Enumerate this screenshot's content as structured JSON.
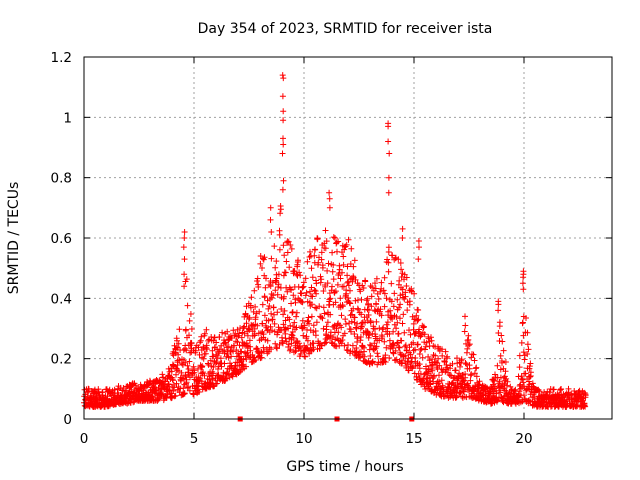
{
  "chart_data": {
    "type": "scatter",
    "title": "Day 354 of 2023, SRMTID for receiver ista",
    "xlabel": "GPS time / hours",
    "ylabel": "SRMTID / TECUs",
    "xlim": [
      0,
      24
    ],
    "ylim": [
      0,
      1.2
    ],
    "x_ticks": [
      "0",
      "5",
      "10",
      "15",
      "20"
    ],
    "y_ticks": [
      "0",
      "0.2",
      "0.4",
      "0.6",
      "0.8",
      "1",
      "1.2"
    ],
    "x_tick_values": [
      0,
      5,
      10,
      15,
      20
    ],
    "y_tick_values": [
      0,
      0.2,
      0.4,
      0.6,
      0.8,
      1.0,
      1.2
    ],
    "grid": true,
    "marker": "+",
    "color": "#ff0000",
    "zero_markers_x": [
      7.1,
      11.5,
      14.9
    ],
    "series": [
      {
        "name": "SRMTID",
        "envelope": {
          "x": [
            0,
            0.5,
            1,
            1.5,
            2,
            2.5,
            3,
            3.5,
            4,
            4.5,
            4.7,
            5,
            5.5,
            6,
            6.5,
            7,
            7.5,
            8,
            8.5,
            9,
            9.5,
            10,
            10.5,
            11,
            11.5,
            12,
            12.5,
            13,
            13.5,
            14,
            14.5,
            15,
            15.5,
            16,
            16.5,
            17,
            17.5,
            18,
            18.5,
            18.9,
            19.3,
            19.7,
            20,
            20.4,
            20.8,
            21.2,
            21.6,
            22,
            22.4,
            22.8
          ],
          "low": [
            0.04,
            0.04,
            0.04,
            0.05,
            0.05,
            0.06,
            0.06,
            0.06,
            0.07,
            0.08,
            0.09,
            0.08,
            0.1,
            0.11,
            0.13,
            0.15,
            0.18,
            0.2,
            0.22,
            0.24,
            0.22,
            0.2,
            0.22,
            0.25,
            0.24,
            0.22,
            0.2,
            0.18,
            0.18,
            0.2,
            0.18,
            0.14,
            0.1,
            0.08,
            0.07,
            0.07,
            0.07,
            0.06,
            0.05,
            0.06,
            0.05,
            0.05,
            0.06,
            0.04,
            0.04,
            0.04,
            0.04,
            0.04,
            0.04,
            0.04
          ],
          "high": [
            0.11,
            0.1,
            0.1,
            0.11,
            0.12,
            0.12,
            0.13,
            0.14,
            0.22,
            0.34,
            0.55,
            0.25,
            0.3,
            0.28,
            0.3,
            0.3,
            0.4,
            0.55,
            0.55,
            0.75,
            0.55,
            0.5,
            0.6,
            0.65,
            0.6,
            0.6,
            0.5,
            0.45,
            0.5,
            0.6,
            0.5,
            0.42,
            0.3,
            0.25,
            0.22,
            0.2,
            0.28,
            0.12,
            0.1,
            0.35,
            0.12,
            0.1,
            0.4,
            0.12,
            0.09,
            0.1,
            0.1,
            0.1,
            0.1,
            0.09
          ]
        },
        "spikes": [
          {
            "x": 4.55,
            "values": [
              0.62,
              0.6,
              0.57,
              0.53,
              0.48,
              0.44
            ]
          },
          {
            "x": 9.05,
            "values": [
              1.14,
              1.13,
              1.07,
              1.02,
              0.99,
              0.93,
              0.91,
              0.88,
              0.79,
              0.76
            ]
          },
          {
            "x": 13.85,
            "values": [
              0.98,
              0.97,
              0.92,
              0.88,
              0.8,
              0.75
            ]
          },
          {
            "x": 19.95,
            "values": [
              0.49,
              0.48,
              0.47,
              0.45,
              0.43
            ]
          },
          {
            "x": 18.85,
            "values": [
              0.39,
              0.38,
              0.36
            ]
          },
          {
            "x": 8.5,
            "values": [
              0.7,
              0.66,
              0.62
            ]
          },
          {
            "x": 11.15,
            "values": [
              0.75,
              0.73,
              0.7
            ]
          },
          {
            "x": 15.2,
            "values": [
              0.59,
              0.57,
              0.53
            ]
          },
          {
            "x": 14.5,
            "values": [
              0.63,
              0.6
            ]
          },
          {
            "x": 17.3,
            "values": [
              0.34,
              0.31,
              0.29
            ]
          }
        ]
      }
    ]
  }
}
